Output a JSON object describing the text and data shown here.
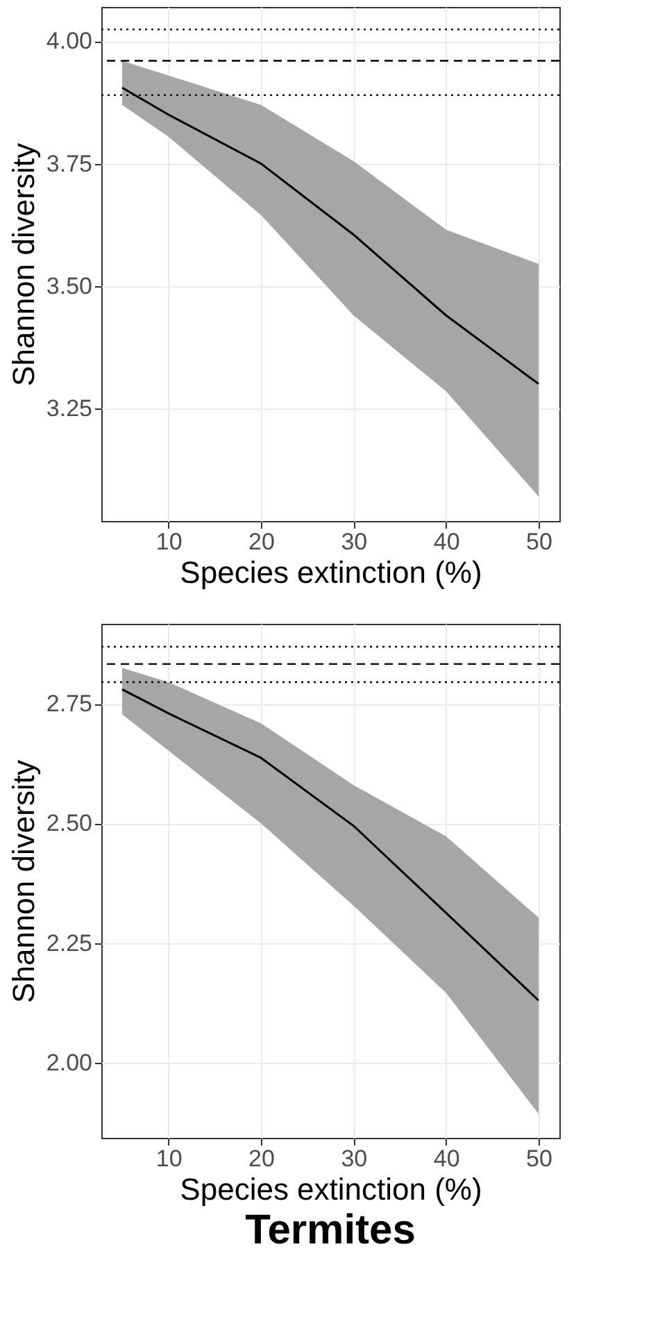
{
  "chart_data": [
    {
      "type": "line",
      "xlabel": "Species extinction (%)",
      "ylabel": "Shannon diversity",
      "x": [
        5,
        10,
        20,
        30,
        40,
        50
      ],
      "series": [
        {
          "color": "#000000",
          "values": [
            3.905,
            3.85,
            3.75,
            3.605,
            3.44,
            3.3
          ],
          "lower": [
            3.87,
            3.805,
            3.645,
            3.44,
            3.285,
            3.07
          ],
          "upper": [
            3.96,
            3.93,
            3.87,
            3.755,
            3.615,
            3.545
          ]
        }
      ],
      "xlim": [
        2.75,
        52.25
      ],
      "xticks": [
        10,
        20,
        30,
        40,
        50
      ],
      "ylim": [
        3.02,
        4.07
      ],
      "yticks": [
        {
          "value": 3.25,
          "label": "3.25"
        },
        {
          "value": 3.5,
          "label": "3.50"
        },
        {
          "value": 3.75,
          "label": "3.75"
        },
        {
          "value": 4,
          "label": "4.00"
        }
      ],
      "ref_lines": [
        {
          "axis": "y",
          "value": 4.024,
          "line_style": "dotted"
        },
        {
          "axis": "y",
          "value": 3.96,
          "line_style": "dashed"
        },
        {
          "axis": "y",
          "value": 3.89,
          "line_style": "dotted"
        }
      ],
      "grid": true,
      "line_style": "solid"
    },
    {
      "type": "line",
      "xlabel": "Species extinction (%)",
      "ylabel": "Shannon diversity",
      "x": [
        5,
        10,
        20,
        30,
        40,
        50
      ],
      "series": [
        {
          "color": "#000000",
          "values": [
            2.78,
            2.73,
            2.637,
            2.495,
            2.313,
            2.13
          ],
          "lower": [
            2.728,
            2.652,
            2.5,
            2.328,
            2.146,
            1.893
          ],
          "upper": [
            2.825,
            2.795,
            2.709,
            2.58,
            2.473,
            2.303
          ]
        }
      ],
      "xlim": [
        2.75,
        52.25
      ],
      "xticks": [
        10,
        20,
        30,
        40,
        50
      ],
      "ylim": [
        1.843,
        2.917
      ],
      "yticks": [
        {
          "value": 2,
          "label": "2.00"
        },
        {
          "value": 2.25,
          "label": "2.25"
        },
        {
          "value": 2.5,
          "label": "2.50"
        },
        {
          "value": 2.75,
          "label": "2.75"
        }
      ],
      "ref_lines": [
        {
          "axis": "y",
          "value": 2.869,
          "line_style": "dotted"
        },
        {
          "axis": "y",
          "value": 2.833,
          "line_style": "dashed"
        },
        {
          "axis": "y",
          "value": 2.795,
          "line_style": "dotted"
        }
      ],
      "grid": true,
      "line_style": "solid",
      "annotations": [
        "Termites"
      ]
    }
  ]
}
